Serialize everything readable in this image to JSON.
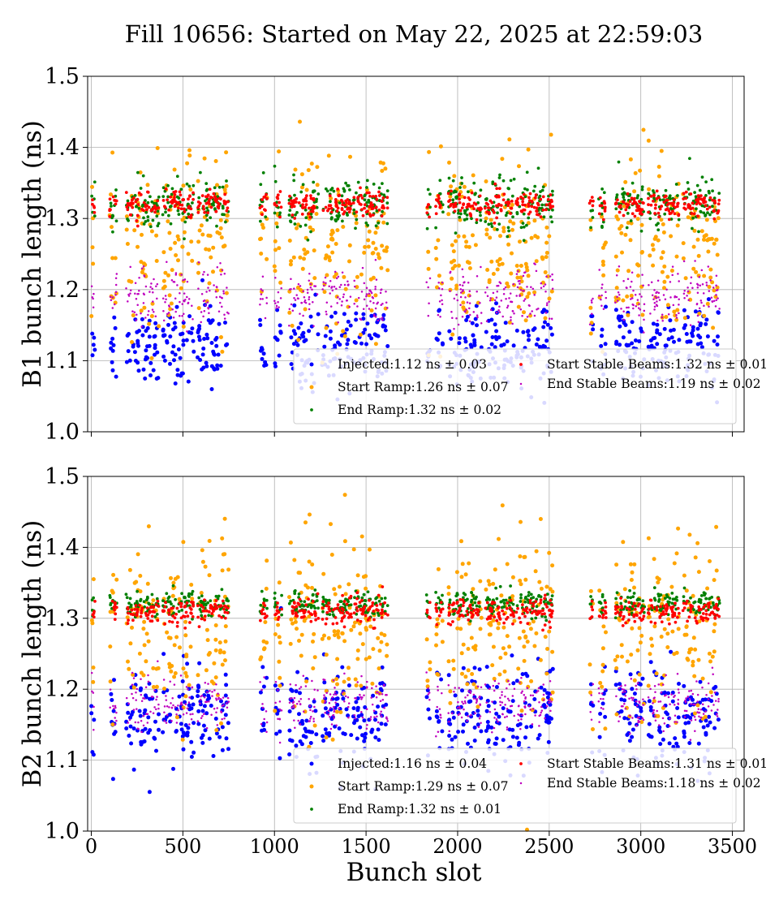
{
  "figure": {
    "title": "Fill 10656: Started on May 22, 2025 at 22:59:03",
    "xlabel": "Bunch slot"
  },
  "colors": {
    "injected": "#0000ff",
    "start_ramp": "#ffa500",
    "end_ramp": "#008000",
    "start_stable": "#ff0000",
    "end_stable": "#bf00bf",
    "grid": "#b0b0b0"
  },
  "chart_data": [
    {
      "type": "scatter",
      "panel": "B1",
      "ylabel": "B1 bunch length (ns)",
      "xlim": [
        -20,
        3564
      ],
      "ylim": [
        1.0,
        1.5
      ],
      "xticks": [
        0,
        500,
        1000,
        1500,
        2000,
        2500,
        3000,
        3500
      ],
      "yticks": [
        1.0,
        1.1,
        1.2,
        1.3,
        1.4,
        1.5
      ],
      "xtick_labels_shown": false,
      "grid": true,
      "legend_position": "lower-right",
      "trains": [
        [
          0,
          20
        ],
        [
          100,
          140
        ],
        [
          190,
          370
        ],
        [
          390,
          560
        ],
        [
          580,
          750
        ],
        [
          920,
          960
        ],
        [
          1000,
          1040
        ],
        [
          1080,
          1240
        ],
        [
          1260,
          1420
        ],
        [
          1430,
          1620
        ],
        [
          1830,
          1850
        ],
        [
          1880,
          1920
        ],
        [
          1950,
          2130
        ],
        [
          2150,
          2310
        ],
        [
          2320,
          2520
        ],
        [
          2720,
          2740
        ],
        [
          2770,
          2810
        ],
        [
          2860,
          3020
        ],
        [
          3040,
          3210
        ],
        [
          3230,
          3430
        ]
      ],
      "series": [
        {
          "name": "Injected",
          "legend": "Injected:1.12 ns ± 0.03",
          "mean": 1.12,
          "std": 0.03,
          "color_key": "injected",
          "marker_size": 4
        },
        {
          "name": "Start Ramp",
          "legend": "Start Ramp:1.26 ns ± 0.07",
          "mean": 1.26,
          "std": 0.07,
          "color_key": "start_ramp",
          "marker_size": 4
        },
        {
          "name": "End Ramp",
          "legend": "End Ramp:1.32 ns ± 0.02",
          "mean": 1.32,
          "std": 0.02,
          "color_key": "end_ramp",
          "marker_size": 3
        },
        {
          "name": "Start Stable Beams",
          "legend": "Start Stable Beams:1.32 ns ± 0.01",
          "mean": 1.32,
          "std": 0.01,
          "color_key": "start_stable",
          "marker_size": 3
        },
        {
          "name": "End Stable Beams",
          "legend": "End Stable Beams:1.19 ns ± 0.02",
          "mean": 1.19,
          "std": 0.02,
          "color_key": "end_stable",
          "marker_size": 2
        }
      ]
    },
    {
      "type": "scatter",
      "panel": "B2",
      "ylabel": "B2 bunch length (ns)",
      "xlim": [
        -20,
        3564
      ],
      "ylim": [
        1.0,
        1.5
      ],
      "xticks": [
        0,
        500,
        1000,
        1500,
        2000,
        2500,
        3000,
        3500
      ],
      "yticks": [
        1.0,
        1.1,
        1.2,
        1.3,
        1.4,
        1.5
      ],
      "xtick_labels": [
        "0",
        "500",
        "1000",
        "1500",
        "2000",
        "2500",
        "3000",
        "3500"
      ],
      "xtick_labels_shown": true,
      "grid": true,
      "legend_position": "lower-right",
      "trains": [
        [
          0,
          20
        ],
        [
          100,
          140
        ],
        [
          190,
          370
        ],
        [
          390,
          560
        ],
        [
          580,
          750
        ],
        [
          920,
          960
        ],
        [
          1000,
          1040
        ],
        [
          1080,
          1240
        ],
        [
          1260,
          1420
        ],
        [
          1430,
          1620
        ],
        [
          1830,
          1850
        ],
        [
          1880,
          1920
        ],
        [
          1950,
          2130
        ],
        [
          2150,
          2310
        ],
        [
          2320,
          2520
        ],
        [
          2720,
          2740
        ],
        [
          2770,
          2810
        ],
        [
          2860,
          3020
        ],
        [
          3040,
          3210
        ],
        [
          3230,
          3430
        ]
      ],
      "series": [
        {
          "name": "Injected",
          "legend": "Injected:1.16 ns ± 0.04",
          "mean": 1.16,
          "std": 0.04,
          "color_key": "injected",
          "marker_size": 4
        },
        {
          "name": "Start Ramp",
          "legend": "Start Ramp:1.29 ns ± 0.07",
          "mean": 1.29,
          "std": 0.07,
          "color_key": "start_ramp",
          "marker_size": 4
        },
        {
          "name": "End Ramp",
          "legend": "End Ramp:1.32 ns ± 0.01",
          "mean": 1.32,
          "std": 0.01,
          "color_key": "end_ramp",
          "marker_size": 3
        },
        {
          "name": "Start Stable Beams",
          "legend": "Start Stable Beams:1.31 ns ± 0.01",
          "mean": 1.31,
          "std": 0.01,
          "color_key": "start_stable",
          "marker_size": 3
        },
        {
          "name": "End Stable Beams",
          "legend": "End Stable Beams:1.18 ns ± 0.02",
          "mean": 1.18,
          "std": 0.02,
          "color_key": "end_stable",
          "marker_size": 2
        }
      ]
    }
  ]
}
